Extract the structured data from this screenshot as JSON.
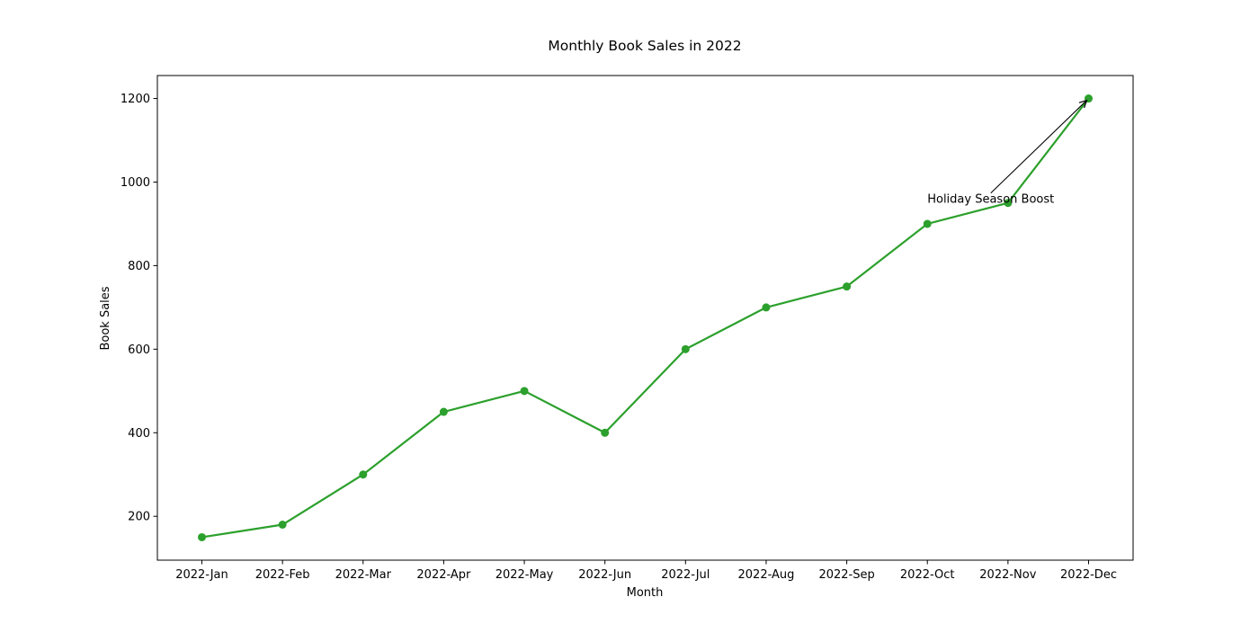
{
  "chart_data": {
    "type": "line",
    "title": "Monthly Book Sales in 2022",
    "xlabel": "Month",
    "ylabel": "Book Sales",
    "categories": [
      "2022-Jan",
      "2022-Feb",
      "2022-Mar",
      "2022-Apr",
      "2022-May",
      "2022-Jun",
      "2022-Jul",
      "2022-Aug",
      "2022-Sep",
      "2022-Oct",
      "2022-Nov",
      "2022-Dec"
    ],
    "series": [
      {
        "values": [
          150,
          180,
          300,
          450,
          500,
          400,
          600,
          700,
          750,
          900,
          950,
          1200
        ],
        "color": "#2ca02c",
        "marker": "circle"
      }
    ],
    "ylim": [
      95,
      1255
    ],
    "yticks": [
      200,
      400,
      600,
      800,
      1000,
      1200
    ],
    "grid": false,
    "legend": "none",
    "annotation": {
      "text": "Holiday Season Boost",
      "target_category": "2022-Dec",
      "target_value": 1200,
      "text_anchor_category": "2022-Oct",
      "text_anchor_value": 950
    }
  }
}
